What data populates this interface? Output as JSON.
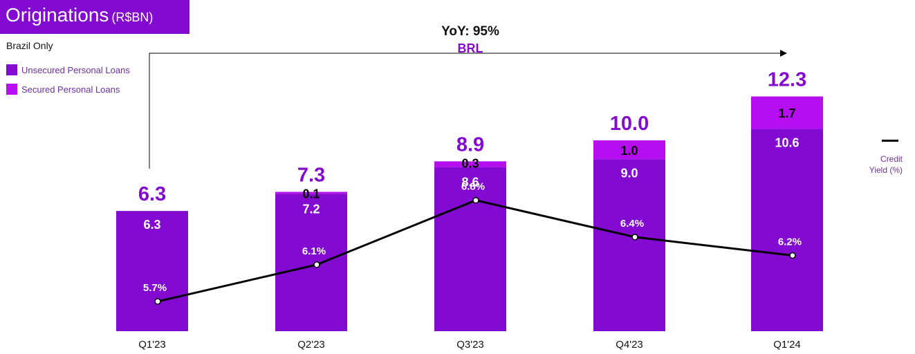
{
  "header": {
    "title": "Originations",
    "unit": "(R$BN)",
    "subtitle": "Brazil Only"
  },
  "legend": {
    "items": [
      {
        "label": "Unsecured Personal Loans",
        "color": "#820ad1"
      },
      {
        "label": "Secured Personal Loans",
        "color": "#b60ef0"
      }
    ],
    "line_label": "Credit Yield (%)"
  },
  "annotation": {
    "yoy": "YoY: 95%",
    "currency": "BRL"
  },
  "chart_data": {
    "type": "bar",
    "stacked": true,
    "categories": [
      "Q1'23",
      "Q2'23",
      "Q3'23",
      "Q4'23",
      "Q1'24"
    ],
    "series": [
      {
        "name": "Unsecured Personal Loans",
        "values": [
          6.3,
          7.2,
          8.6,
          9.0,
          10.6
        ],
        "labels": [
          "6.3",
          "7.2",
          "8.6",
          "9.0",
          "10.6"
        ],
        "color": "#820ad1"
      },
      {
        "name": "Secured Personal Loans",
        "values": [
          0,
          0.1,
          0.3,
          1.0,
          1.7
        ],
        "labels": [
          "",
          "0.1",
          "0.3",
          "1.0",
          "1.7"
        ],
        "color": "#b60ef0"
      }
    ],
    "totals": [
      "6.3",
      "7.3",
      "8.9",
      "10.0",
      "12.3"
    ],
    "line": {
      "name": "Credit Yield (%)",
      "values": [
        5.7,
        6.1,
        6.8,
        6.4,
        6.2
      ],
      "labels": [
        "5.7%",
        "6.1%",
        "6.8%",
        "6.4%",
        "6.2%"
      ],
      "color": "#000000"
    },
    "grid": false,
    "legend_position": "top-left"
  }
}
